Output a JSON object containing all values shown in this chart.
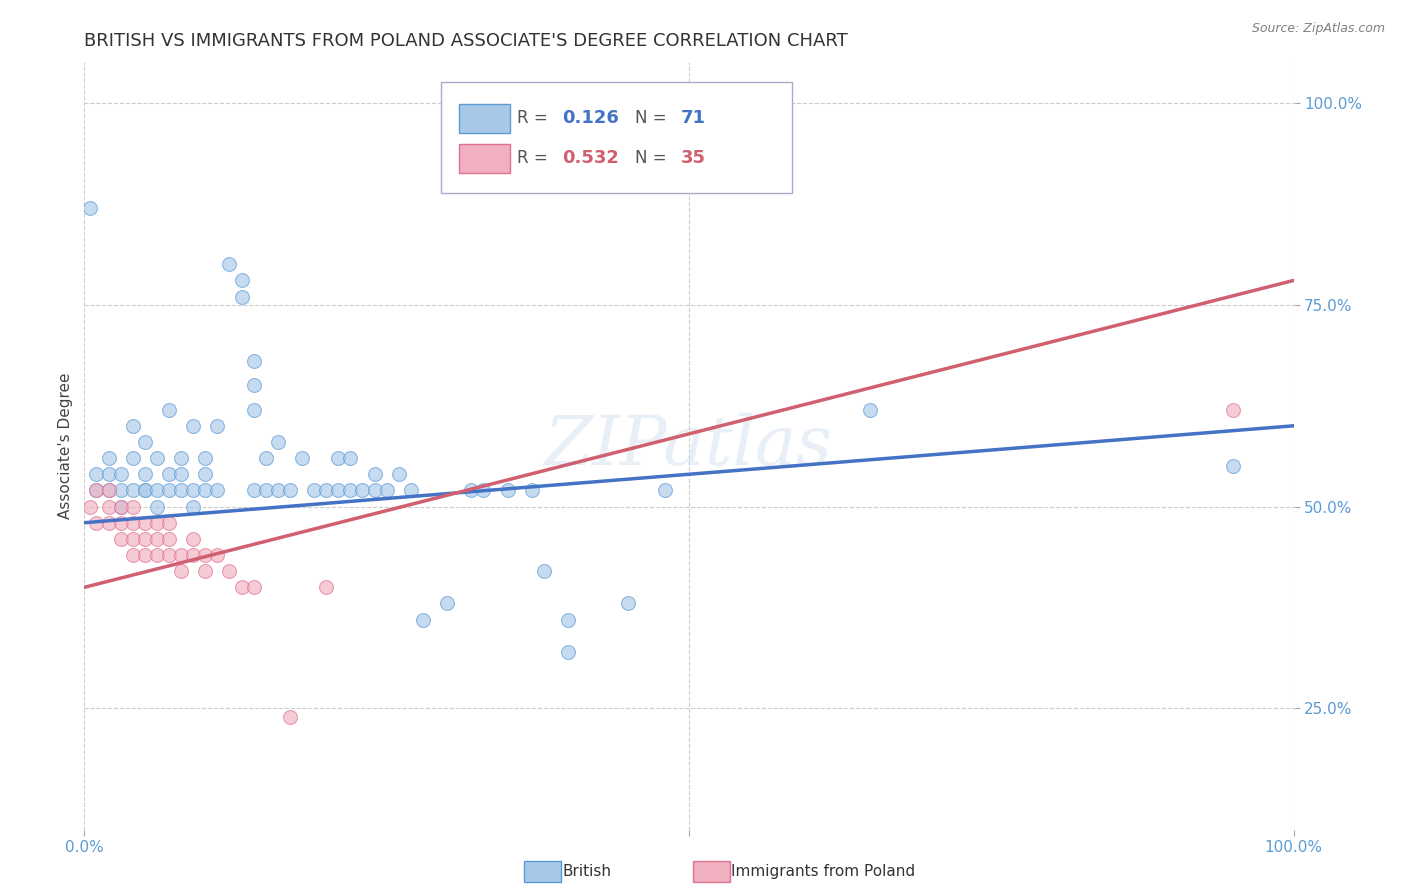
{
  "title": "BRITISH VS IMMIGRANTS FROM POLAND ASSOCIATE'S DEGREE CORRELATION CHART",
  "source": "Source: ZipAtlas.com",
  "ylabel": "Associate's Degree",
  "watermark": "ZIPatlas",
  "xlim": [
    0,
    1
  ],
  "ylim": [
    0.1,
    1.05
  ],
  "ytick_labels": [
    "25.0%",
    "50.0%",
    "75.0%",
    "100.0%"
  ],
  "ytick_values": [
    0.25,
    0.5,
    0.75,
    1.0
  ],
  "british_color": "#a8c8e8",
  "poland_color": "#f0b0c0",
  "british_edge_color": "#5b9bd5",
  "poland_edge_color": "#e07090",
  "british_line_color": "#4472c4",
  "poland_line_color": "#d06070",
  "british_scatter": [
    [
      0.005,
      0.87
    ],
    [
      0.01,
      0.54
    ],
    [
      0.01,
      0.52
    ],
    [
      0.02,
      0.54
    ],
    [
      0.02,
      0.52
    ],
    [
      0.02,
      0.56
    ],
    [
      0.03,
      0.52
    ],
    [
      0.03,
      0.5
    ],
    [
      0.03,
      0.54
    ],
    [
      0.04,
      0.52
    ],
    [
      0.04,
      0.56
    ],
    [
      0.04,
      0.6
    ],
    [
      0.05,
      0.54
    ],
    [
      0.05,
      0.52
    ],
    [
      0.05,
      0.58
    ],
    [
      0.05,
      0.52
    ],
    [
      0.06,
      0.56
    ],
    [
      0.06,
      0.5
    ],
    [
      0.06,
      0.52
    ],
    [
      0.07,
      0.54
    ],
    [
      0.07,
      0.62
    ],
    [
      0.07,
      0.52
    ],
    [
      0.08,
      0.56
    ],
    [
      0.08,
      0.52
    ],
    [
      0.08,
      0.54
    ],
    [
      0.09,
      0.6
    ],
    [
      0.09,
      0.52
    ],
    [
      0.09,
      0.5
    ],
    [
      0.1,
      0.56
    ],
    [
      0.1,
      0.52
    ],
    [
      0.1,
      0.54
    ],
    [
      0.11,
      0.52
    ],
    [
      0.11,
      0.6
    ],
    [
      0.12,
      0.8
    ],
    [
      0.13,
      0.78
    ],
    [
      0.13,
      0.76
    ],
    [
      0.14,
      0.68
    ],
    [
      0.14,
      0.65
    ],
    [
      0.14,
      0.62
    ],
    [
      0.14,
      0.52
    ],
    [
      0.15,
      0.56
    ],
    [
      0.15,
      0.52
    ],
    [
      0.16,
      0.58
    ],
    [
      0.16,
      0.52
    ],
    [
      0.17,
      0.52
    ],
    [
      0.18,
      0.56
    ],
    [
      0.19,
      0.52
    ],
    [
      0.2,
      0.52
    ],
    [
      0.21,
      0.56
    ],
    [
      0.21,
      0.52
    ],
    [
      0.22,
      0.52
    ],
    [
      0.22,
      0.56
    ],
    [
      0.23,
      0.52
    ],
    [
      0.24,
      0.54
    ],
    [
      0.24,
      0.52
    ],
    [
      0.25,
      0.52
    ],
    [
      0.26,
      0.54
    ],
    [
      0.27,
      0.52
    ],
    [
      0.28,
      0.36
    ],
    [
      0.3,
      0.38
    ],
    [
      0.32,
      0.52
    ],
    [
      0.33,
      0.52
    ],
    [
      0.35,
      0.52
    ],
    [
      0.37,
      0.52
    ],
    [
      0.38,
      0.42
    ],
    [
      0.4,
      0.32
    ],
    [
      0.4,
      0.36
    ],
    [
      0.45,
      0.38
    ],
    [
      0.48,
      0.52
    ],
    [
      0.65,
      0.62
    ],
    [
      0.95,
      0.55
    ]
  ],
  "poland_scatter": [
    [
      0.005,
      0.5
    ],
    [
      0.01,
      0.52
    ],
    [
      0.01,
      0.48
    ],
    [
      0.02,
      0.5
    ],
    [
      0.02,
      0.48
    ],
    [
      0.02,
      0.52
    ],
    [
      0.03,
      0.48
    ],
    [
      0.03,
      0.5
    ],
    [
      0.03,
      0.46
    ],
    [
      0.04,
      0.5
    ],
    [
      0.04,
      0.48
    ],
    [
      0.04,
      0.46
    ],
    [
      0.04,
      0.44
    ],
    [
      0.05,
      0.46
    ],
    [
      0.05,
      0.48
    ],
    [
      0.05,
      0.44
    ],
    [
      0.06,
      0.46
    ],
    [
      0.06,
      0.48
    ],
    [
      0.06,
      0.44
    ],
    [
      0.07,
      0.46
    ],
    [
      0.07,
      0.44
    ],
    [
      0.07,
      0.48
    ],
    [
      0.08,
      0.44
    ],
    [
      0.08,
      0.42
    ],
    [
      0.09,
      0.44
    ],
    [
      0.09,
      0.46
    ],
    [
      0.1,
      0.44
    ],
    [
      0.1,
      0.42
    ],
    [
      0.11,
      0.44
    ],
    [
      0.12,
      0.42
    ],
    [
      0.13,
      0.4
    ],
    [
      0.14,
      0.4
    ],
    [
      0.17,
      0.24
    ],
    [
      0.2,
      0.4
    ],
    [
      0.95,
      0.62
    ]
  ],
  "british_slope": 0.126,
  "british_intercept": 0.48,
  "poland_slope_val": 0.38,
  "poland_intercept_val": 0.38,
  "title_fontsize": 13,
  "axis_label_fontsize": 11,
  "tick_fontsize": 11,
  "scatter_size": 100,
  "scatter_alpha": 0.65,
  "grid_color": "#cccccc",
  "background_color": "#ffffff",
  "title_color": "#333333",
  "axis_tick_color": "#5b9bd5",
  "source_color": "#808080"
}
